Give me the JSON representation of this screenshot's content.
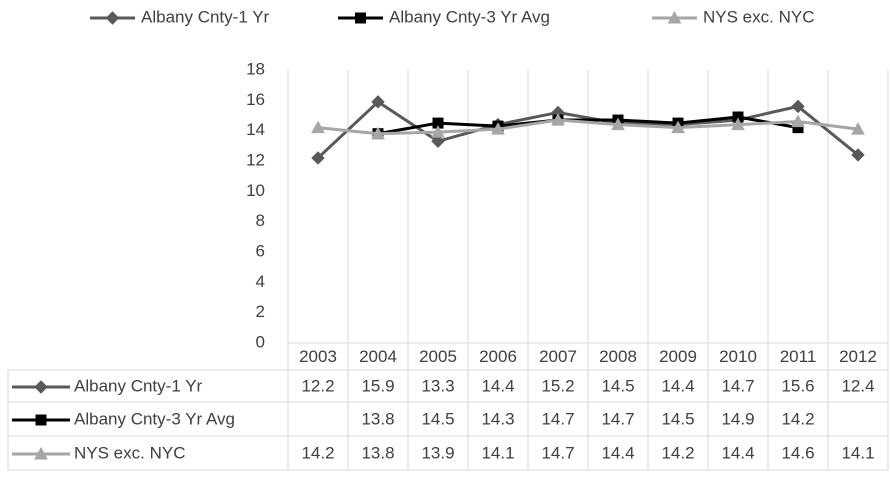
{
  "chart_data": {
    "type": "line",
    "categories": [
      "2003",
      "2004",
      "2005",
      "2006",
      "2007",
      "2008",
      "2009",
      "2010",
      "2011",
      "2012"
    ],
    "series": [
      {
        "name": "Albany Cnty-1 Yr",
        "color": "#595959",
        "marker": "diamond",
        "values": [
          12.2,
          15.9,
          13.3,
          14.4,
          15.2,
          14.5,
          14.4,
          14.7,
          15.6,
          12.4
        ]
      },
      {
        "name": "Albany Cnty-3 Yr Avg",
        "color": "#000000",
        "marker": "square",
        "values": [
          null,
          13.8,
          14.5,
          14.3,
          14.7,
          14.7,
          14.5,
          14.9,
          14.2,
          null
        ]
      },
      {
        "name": "NYS exc. NYC",
        "color": "#a6a6a6",
        "marker": "triangle",
        "values": [
          14.2,
          13.8,
          13.9,
          14.1,
          14.7,
          14.4,
          14.2,
          14.4,
          14.6,
          14.1
        ]
      }
    ],
    "ylim": [
      0,
      18
    ],
    "yticks": [
      0,
      2,
      4,
      6,
      8,
      10,
      12,
      14,
      16,
      18
    ],
    "legend": "top",
    "data_table": true
  }
}
